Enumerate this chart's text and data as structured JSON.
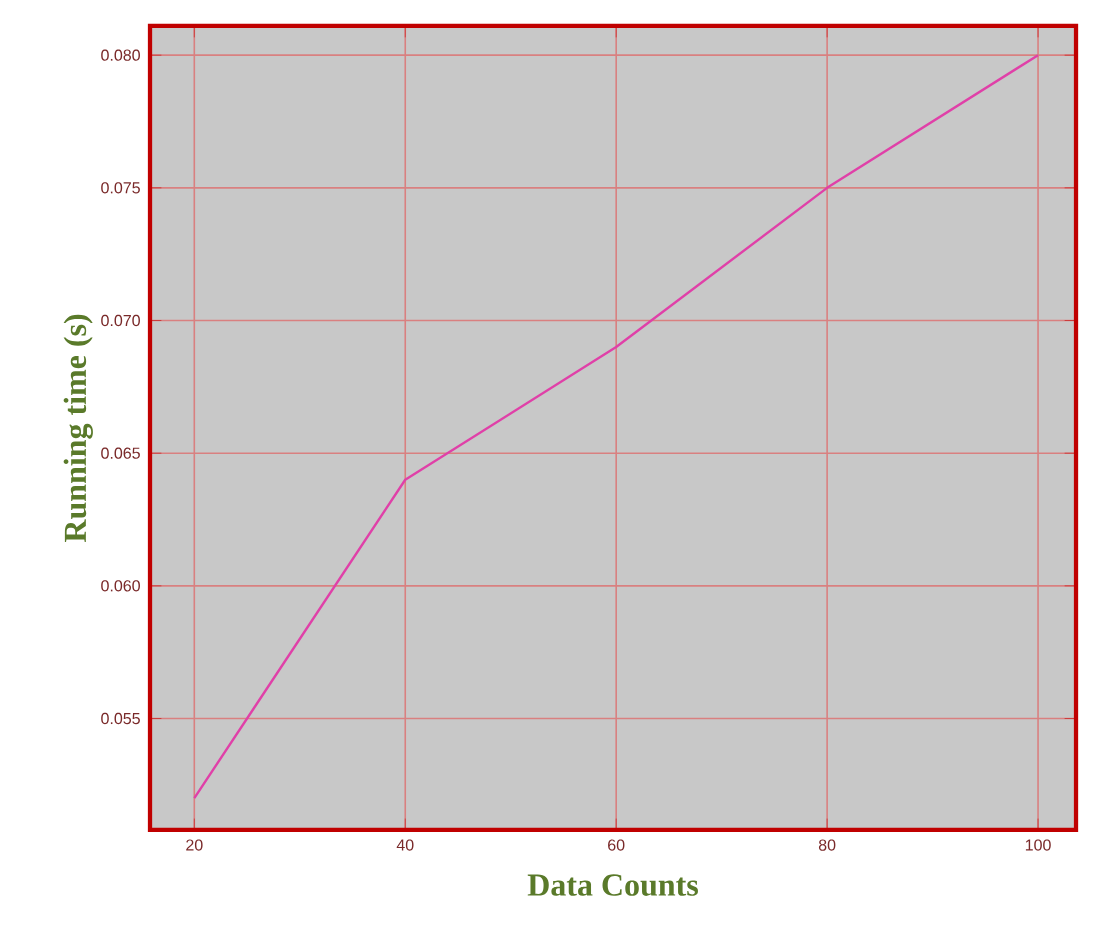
{
  "chart_data": {
    "type": "line",
    "xlabel": "Data Counts",
    "ylabel": "Running time (s)",
    "x": [
      20,
      40,
      60,
      80,
      100
    ],
    "series": [
      {
        "color": "#e040a8",
        "values": [
          0.052,
          0.064,
          0.069,
          0.075,
          0.08
        ]
      }
    ],
    "xlim": [
      15.8,
      103.6
    ],
    "ylim": [
      0.0508,
      0.0811
    ],
    "xticks": [
      20,
      40,
      60,
      80,
      100
    ],
    "yticks": [
      {
        "value": 0.055,
        "label": "0.055"
      },
      {
        "value": 0.06,
        "label": "0.060"
      },
      {
        "value": 0.065,
        "label": "0.065"
      },
      {
        "value": 0.07,
        "label": "0.070"
      },
      {
        "value": 0.075,
        "label": "0.075"
      },
      {
        "value": 0.08,
        "label": "0.080"
      }
    ],
    "grid": true,
    "marker": "none",
    "line_style": "solid"
  }
}
